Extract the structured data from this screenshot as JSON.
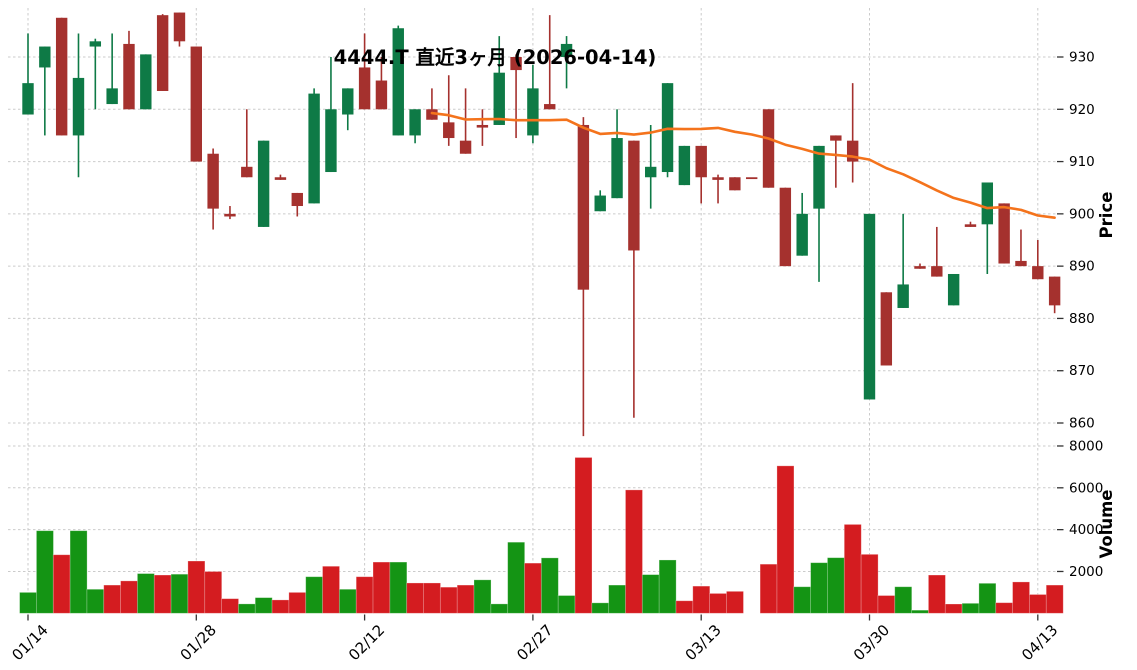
{
  "title": "4444.T 直近3ヶ月 (2026-04-14)",
  "price_axis": {
    "label": "Price",
    "ticks": [
      930,
      920,
      910,
      900,
      890,
      880,
      870,
      860
    ]
  },
  "volume_axis": {
    "label": "Volume",
    "ticks": [
      8000,
      6000,
      4000,
      2000
    ]
  },
  "x_axis": {
    "ticks": [
      [
        0,
        "01/14"
      ],
      [
        10,
        "01/28"
      ],
      [
        20,
        "02/12"
      ],
      [
        30,
        "02/27"
      ],
      [
        40,
        "03/13"
      ],
      [
        50,
        "03/30"
      ],
      [
        60,
        "04/13"
      ]
    ]
  },
  "colors": {
    "candle_up": "#0e7a46",
    "candle_down": "#a5312e",
    "volume_up": "#149414",
    "volume_down": "#d41c20",
    "ma_line": "#f4731c",
    "grid": "#cbcbcb",
    "tick_mark": "#333333"
  },
  "chart_data": {
    "type": "candlestick",
    "title": "4444.T 直近3ヶ月 (2026-04-14)",
    "panels": [
      "price",
      "volume"
    ],
    "ma_window": 25,
    "price_ylim": [
      857,
      939.5
    ],
    "volume_ylim": [
      0,
      8050
    ],
    "grid": true,
    "candle_fields": [
      "open",
      "high",
      "low",
      "close",
      "candle_dir",
      "volume",
      "volume_dir"
    ],
    "candles": [
      [
        919,
        934.5,
        919,
        925,
        "u",
        1000,
        "u"
      ],
      [
        928,
        932,
        915,
        932,
        "u",
        3950,
        "u"
      ],
      [
        937.5,
        937.5,
        915,
        915,
        "d",
        2800,
        "d"
      ],
      [
        915,
        934.5,
        907,
        926,
        "u",
        3950,
        "u"
      ],
      [
        932,
        933.5,
        920,
        933,
        "u",
        1150,
        "u"
      ],
      [
        921,
        934.5,
        921,
        924,
        "u",
        1350,
        "d"
      ],
      [
        932.5,
        935,
        920,
        920,
        "d",
        1550,
        "d"
      ],
      [
        920,
        930.5,
        920,
        930.5,
        "u",
        1900,
        "u"
      ],
      [
        938,
        938.2,
        923.5,
        923.5,
        "d",
        1830,
        "d"
      ],
      [
        938.5,
        938.5,
        932,
        933,
        "d",
        1870,
        "u"
      ],
      [
        932,
        932,
        910,
        910,
        "d",
        2500,
        "d"
      ],
      [
        911.5,
        912.5,
        897,
        901,
        "d",
        2000,
        "d"
      ],
      [
        900,
        901.5,
        899,
        899.5,
        "d",
        700,
        "d"
      ],
      [
        909,
        920,
        907,
        907,
        "d",
        450,
        "u"
      ],
      [
        897.5,
        914,
        897.5,
        914,
        "u",
        750,
        "u"
      ],
      [
        907,
        907.5,
        906.5,
        906.5,
        "d",
        640,
        "d"
      ],
      [
        904,
        904,
        899.5,
        901.5,
        "d",
        1000,
        "d"
      ],
      [
        902,
        924,
        902,
        923,
        "u",
        1750,
        "u"
      ],
      [
        908,
        930,
        908,
        920,
        "u",
        2250,
        "d"
      ],
      [
        919,
        924,
        916,
        924,
        "u",
        1150,
        "u"
      ],
      [
        928,
        934.5,
        920,
        920,
        "d",
        1750,
        "d"
      ],
      [
        925.5,
        930,
        920,
        920,
        "d",
        2450,
        "d"
      ],
      [
        915,
        936,
        915,
        935.5,
        "u",
        2450,
        "u"
      ],
      [
        915,
        920,
        913.5,
        920,
        "u",
        1450,
        "d"
      ],
      [
        920,
        924,
        918,
        918,
        "d",
        1450,
        "d"
      ],
      [
        917.5,
        926.5,
        913,
        914.5,
        "d",
        1250,
        "d"
      ],
      [
        914,
        924,
        911.5,
        911.5,
        "d",
        1350,
        "d"
      ],
      [
        917,
        920,
        913,
        916.5,
        "d",
        1600,
        "u"
      ],
      [
        917,
        934,
        917,
        927,
        "u",
        450,
        "u"
      ],
      [
        930,
        930.5,
        914.5,
        927.5,
        "d",
        3400,
        "u"
      ],
      [
        915,
        928.5,
        913.5,
        924,
        "u",
        2400,
        "d"
      ],
      [
        921,
        938,
        920,
        920,
        "d",
        2650,
        "u"
      ],
      [
        930,
        934,
        924,
        932.5,
        "u",
        850,
        "u"
      ],
      [
        917,
        918.5,
        857.5,
        885.5,
        "d",
        7450,
        "d"
      ],
      [
        900.5,
        904.5,
        900.5,
        903.5,
        "u",
        500,
        "u"
      ],
      [
        903,
        920,
        903,
        914.5,
        "u",
        1350,
        "u"
      ],
      [
        914,
        914,
        861,
        893,
        "d",
        5900,
        "d"
      ],
      [
        907,
        917,
        901,
        909,
        "u",
        1850,
        "u"
      ],
      [
        908,
        925,
        907,
        925,
        "u",
        2550,
        "u"
      ],
      [
        905.5,
        913,
        905.5,
        913,
        "u",
        600,
        "d"
      ],
      [
        913,
        913,
        902,
        907,
        "d",
        1300,
        "d"
      ],
      [
        907,
        907.5,
        902,
        906.5,
        "d",
        950,
        "d"
      ],
      [
        907,
        907,
        904.5,
        904.5,
        "d",
        1050,
        "d"
      ],
      [
        907,
        907,
        907,
        907,
        "d",
        0,
        "d"
      ],
      [
        920,
        920,
        905,
        905,
        "d",
        2350,
        "d"
      ],
      [
        905,
        905,
        890,
        890,
        "d",
        7050,
        "d"
      ],
      [
        892,
        904,
        892,
        900,
        "u",
        1270,
        "u"
      ],
      [
        901,
        913,
        887,
        913,
        "u",
        2420,
        "u"
      ],
      [
        915,
        915,
        905,
        914,
        "d",
        2660,
        "u"
      ],
      [
        914,
        925,
        906,
        910,
        "d",
        4250,
        "d"
      ],
      [
        864.5,
        900,
        864.5,
        900,
        "u",
        2820,
        "d"
      ],
      [
        885,
        885,
        871,
        871,
        "d",
        850,
        "d"
      ],
      [
        882,
        900,
        882,
        886.5,
        "u",
        1270,
        "u"
      ],
      [
        890,
        890.5,
        889.5,
        889.5,
        "d",
        150,
        "u"
      ],
      [
        890,
        897.5,
        888,
        888,
        "d",
        1830,
        "d"
      ],
      [
        882.5,
        888.5,
        882.5,
        888.5,
        "u",
        445,
        "d"
      ],
      [
        898,
        898.5,
        897.5,
        897.5,
        "d",
        478,
        "u"
      ],
      [
        898,
        906,
        888.5,
        906,
        "u",
        1435,
        "u"
      ],
      [
        902,
        902,
        890.5,
        890.5,
        "d",
        508,
        "d"
      ],
      [
        891,
        897,
        890,
        890,
        "d",
        1500,
        "d"
      ],
      [
        890,
        895,
        887.5,
        887.5,
        "d",
        900,
        "d"
      ],
      [
        888,
        888,
        881,
        882.5,
        "d",
        1350,
        "d"
      ]
    ]
  }
}
